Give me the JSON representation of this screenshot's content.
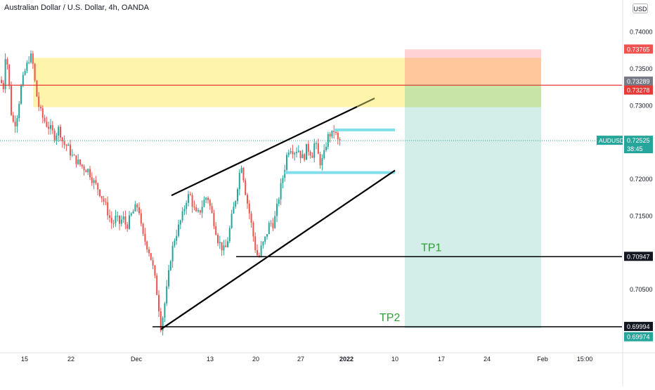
{
  "header": {
    "symbol_title": "Australian Dollar / U.S. Dollar, 4h, OANDA",
    "currency_button": "USD"
  },
  "colors": {
    "bull": "#26a69a",
    "bear": "#ef5350",
    "supply_zone": "#fff3a6",
    "red_line": "#e53935",
    "stop_zone": "#ffcdd2",
    "target_zone": "#d3ede8",
    "tp_text": "#2e9e35",
    "hline": "#000000",
    "channel": "#000000",
    "cyan": "#80deea",
    "axis_text": "#131722",
    "label_dark": "#131722",
    "label_gray": "#787b86"
  },
  "chart_data": {
    "type": "candlestick",
    "title": "Australian Dollar / U.S. Dollar, 4h, OANDA",
    "symbol": "AUDUSD",
    "timeframe": "4h",
    "source": "OANDA",
    "currency": "USD",
    "y_ticks": [
      "0.74000",
      "0.73500",
      "0.73000",
      "0.72000",
      "0.71500",
      "0.70500"
    ],
    "y_tick_values": [
      0.74,
      0.735,
      0.73,
      0.72,
      0.715,
      0.705
    ],
    "x_ticks": [
      "15",
      "22",
      "Dec",
      "13",
      "20",
      "27",
      "2022",
      "10",
      "17",
      "24",
      "Feb",
      "15:00"
    ],
    "ylim": [
      0.6966,
      0.7415
    ],
    "price_path": [
      [
        0,
        0.7335
      ],
      [
        5,
        0.7325
      ],
      [
        8,
        0.7375
      ],
      [
        12,
        0.7345
      ],
      [
        15,
        0.7295
      ],
      [
        20,
        0.7272
      ],
      [
        24,
        0.7285
      ],
      [
        30,
        0.7325
      ],
      [
        35,
        0.7345
      ],
      [
        40,
        0.736
      ],
      [
        43,
        0.737
      ],
      [
        47,
        0.7355
      ],
      [
        51,
        0.732
      ],
      [
        55,
        0.73
      ],
      [
        60,
        0.7285
      ],
      [
        66,
        0.7275
      ],
      [
        72,
        0.7268
      ],
      [
        78,
        0.7258
      ],
      [
        84,
        0.727
      ],
      [
        90,
        0.7248
      ],
      [
        96,
        0.7245
      ],
      [
        102,
        0.7232
      ],
      [
        108,
        0.7226
      ],
      [
        114,
        0.722
      ],
      [
        120,
        0.7215
      ],
      [
        126,
        0.7212
      ],
      [
        132,
        0.7198
      ],
      [
        138,
        0.719
      ],
      [
        144,
        0.7178
      ],
      [
        150,
        0.7165
      ],
      [
        155,
        0.715
      ],
      [
        160,
        0.7138
      ],
      [
        165,
        0.7148
      ],
      [
        170,
        0.714
      ],
      [
        175,
        0.7148
      ],
      [
        180,
        0.7135
      ],
      [
        186,
        0.715
      ],
      [
        192,
        0.716
      ],
      [
        197,
        0.7165
      ],
      [
        202,
        0.7125
      ],
      [
        207,
        0.7115
      ],
      [
        213,
        0.71
      ],
      [
        218,
        0.7078
      ],
      [
        222,
        0.7055
      ],
      [
        226,
        0.7025
      ],
      [
        229,
        0.6998
      ],
      [
        233,
        0.7022
      ],
      [
        238,
        0.7055
      ],
      [
        243,
        0.7095
      ],
      [
        248,
        0.7118
      ],
      [
        254,
        0.7135
      ],
      [
        260,
        0.7152
      ],
      [
        265,
        0.7172
      ],
      [
        270,
        0.718
      ],
      [
        275,
        0.7162
      ],
      [
        280,
        0.715
      ],
      [
        285,
        0.7158
      ],
      [
        290,
        0.717
      ],
      [
        295,
        0.7178
      ],
      [
        300,
        0.7158
      ],
      [
        305,
        0.714
      ],
      [
        310,
        0.7118
      ],
      [
        315,
        0.7108
      ],
      [
        320,
        0.7102
      ],
      [
        325,
        0.7122
      ],
      [
        330,
        0.715
      ],
      [
        335,
        0.7172
      ],
      [
        340,
        0.7205
      ],
      [
        344,
        0.7222
      ],
      [
        348,
        0.719
      ],
      [
        352,
        0.7168
      ],
      [
        356,
        0.7148
      ],
      [
        360,
        0.7125
      ],
      [
        364,
        0.7102
      ],
      [
        368,
        0.7092
      ],
      [
        372,
        0.7108
      ],
      [
        376,
        0.7115
      ],
      [
        380,
        0.7128
      ],
      [
        384,
        0.7142
      ],
      [
        388,
        0.7138
      ],
      [
        392,
        0.715
      ],
      [
        396,
        0.7172
      ],
      [
        400,
        0.7192
      ],
      [
        404,
        0.721
      ],
      [
        408,
        0.7232
      ],
      [
        412,
        0.7245
      ],
      [
        416,
        0.724
      ],
      [
        420,
        0.7238
      ],
      [
        424,
        0.7242
      ],
      [
        428,
        0.7232
      ],
      [
        432,
        0.7228
      ],
      [
        436,
        0.7242
      ],
      [
        440,
        0.724
      ],
      [
        444,
        0.7232
      ],
      [
        448,
        0.7252
      ],
      [
        452,
        0.7235
      ],
      [
        456,
        0.7222
      ],
      [
        460,
        0.7228
      ],
      [
        464,
        0.7248
      ],
      [
        468,
        0.7262
      ],
      [
        472,
        0.726
      ],
      [
        476,
        0.7268
      ],
      [
        480,
        0.7252
      ],
      [
        484,
        0.7252
      ]
    ],
    "current_price": 0.72525,
    "countdown": "38:45",
    "supply_zone": [
      0.7298,
      0.7365
    ],
    "resistance_level": 0.73278,
    "position": {
      "stop": 0.73765,
      "entry": 0.73289,
      "target": 0.69974
    },
    "tp1_level": 0.70947,
    "tp2_level": 0.69994,
    "channel": {
      "upper": [
        [
          244,
          0.7178
        ],
        [
          533,
          0.731
        ]
      ],
      "lower": [
        [
          229,
          0.6996
        ],
        [
          562,
          0.7212
        ]
      ]
    },
    "cyan_levels": [
      {
        "price": 0.7267,
        "x_start": 475,
        "x_end": 562
      },
      {
        "price": 0.7209,
        "x_start": 405,
        "x_end": 562
      }
    ],
    "annotations": [
      "TP1",
      "TP2"
    ],
    "price_labels": {
      "stop": "0.73765",
      "entry": "0.73289",
      "resistance": "0.73278",
      "current_symbol": "AUDUSD",
      "current": "0.72525",
      "countdown": "38:45",
      "tp1": "0.70947",
      "tp2": "0.69994",
      "target": "0.69974"
    }
  }
}
